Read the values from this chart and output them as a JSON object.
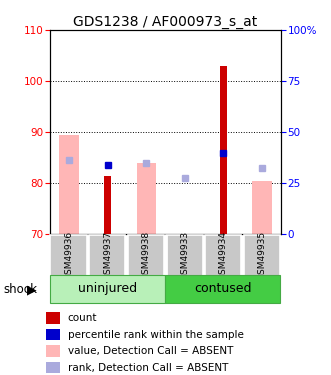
{
  "title": "GDS1238 / AF000973_s_at",
  "samples": [
    "GSM49936",
    "GSM49937",
    "GSM49938",
    "GSM49933",
    "GSM49934",
    "GSM49935"
  ],
  "ylim_left": [
    70,
    110
  ],
  "ylim_right": [
    0,
    100
  ],
  "yticks_left": [
    70,
    80,
    90,
    100,
    110
  ],
  "yticks_right": [
    0,
    25,
    50,
    75,
    100
  ],
  "ytick_labels_right": [
    "0",
    "25",
    "50",
    "75",
    "100%"
  ],
  "red_bars": [
    null,
    81.5,
    null,
    null,
    103.0,
    null
  ],
  "pink_bars": [
    89.5,
    null,
    84.0,
    null,
    null,
    80.5
  ],
  "blue_dots": [
    null,
    83.5,
    null,
    null,
    86.0,
    null
  ],
  "light_blue_dots": [
    84.5,
    null,
    84.0,
    81.0,
    null,
    83.0
  ],
  "red_color": "#cc0000",
  "pink_color": "#ffb6b6",
  "blue_color": "#0000cc",
  "light_blue_color": "#aaaadd",
  "group_labels": [
    "uninjured",
    "contused"
  ],
  "group_colors_uninjured": "#b8f0b8",
  "group_colors_contused": "#44cc44",
  "gray_box_color": "#c8c8c8",
  "legend_items": [
    {
      "label": "count",
      "color": "#cc0000"
    },
    {
      "label": "percentile rank within the sample",
      "color": "#0000cc"
    },
    {
      "label": "value, Detection Call = ABSENT",
      "color": "#ffb6b6"
    },
    {
      "label": "rank, Detection Call = ABSENT",
      "color": "#aaaadd"
    }
  ],
  "title_fontsize": 10,
  "tick_fontsize": 7.5,
  "sample_fontsize": 6.5,
  "group_fontsize": 9,
  "legend_fontsize": 7.5
}
